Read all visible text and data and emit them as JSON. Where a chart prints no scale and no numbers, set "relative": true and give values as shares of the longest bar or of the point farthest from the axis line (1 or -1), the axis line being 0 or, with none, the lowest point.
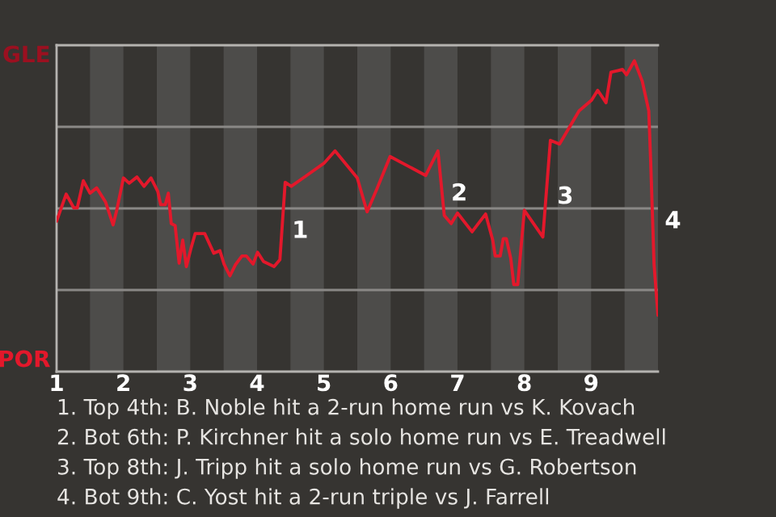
{
  "chart_data": {
    "type": "line",
    "relative": true,
    "x": [
      1.0,
      1.143,
      1.257,
      1.31,
      1.4,
      1.5,
      1.6,
      1.734,
      1.846,
      1.9,
      2.0,
      2.087,
      2.203,
      2.308,
      2.413,
      2.514,
      2.558,
      2.626,
      2.672,
      2.716,
      2.774,
      2.834,
      2.888,
      2.942,
      3.013,
      3.074,
      3.217,
      3.352,
      3.444,
      3.506,
      3.594,
      3.674,
      3.774,
      3.84,
      3.94,
      4.008,
      4.097,
      4.255,
      4.342,
      4.421,
      4.512,
      4.742,
      5.0,
      5.167,
      5.5,
      5.647,
      5.794,
      5.991,
      6.524,
      6.707,
      6.802,
      6.905,
      7.0,
      7.218,
      7.421,
      7.527,
      7.564,
      7.639,
      7.685,
      7.73,
      7.797,
      7.842,
      7.901,
      8.0,
      8.277,
      8.39,
      8.527,
      8.819,
      9.006,
      9.098,
      9.222,
      9.296,
      9.469,
      9.529,
      9.647,
      9.765,
      9.862,
      9.891,
      9.941,
      10.0
    ],
    "series": [
      {
        "color": "#e3182b",
        "values": [
          0.484,
          0.571,
          0.527,
          0.527,
          0.614,
          0.574,
          0.591,
          0.545,
          0.472,
          0.519,
          0.623,
          0.606,
          0.626,
          0.596,
          0.623,
          0.58,
          0.537,
          0.537,
          0.574,
          0.476,
          0.47,
          0.349,
          0.423,
          0.338,
          0.398,
          0.444,
          0.444,
          0.381,
          0.389,
          0.346,
          0.308,
          0.343,
          0.372,
          0.372,
          0.346,
          0.384,
          0.354,
          0.338,
          0.36,
          0.609,
          0.596,
          0.631,
          0.67,
          0.71,
          0.623,
          0.514,
          0.588,
          0.692,
          0.631,
          0.71,
          0.502,
          0.476,
          0.51,
          0.45,
          0.507,
          0.423,
          0.372,
          0.372,
          0.428,
          0.428,
          0.364,
          0.28,
          0.28,
          0.519,
          0.433,
          0.744,
          0.732,
          0.839,
          0.873,
          0.905,
          0.865,
          0.963,
          0.972,
          0.955,
          1,
          0.934,
          0.839,
          0.675,
          0.346,
          0.181
        ]
      }
    ],
    "xlim": [
      1,
      10
    ],
    "xticks": [
      1,
      2,
      3,
      4,
      5,
      6,
      7,
      8,
      9
    ],
    "grid": "y",
    "bands": [
      {
        "axis": "x",
        "from": 1.5,
        "to": 2,
        "color": "#4d4c4a"
      },
      {
        "axis": "x",
        "from": 2.5,
        "to": 3,
        "color": "#4d4c4a"
      },
      {
        "axis": "x",
        "from": 3.5,
        "to": 4,
        "color": "#4d4c4a"
      },
      {
        "axis": "x",
        "from": 4.5,
        "to": 5,
        "color": "#4d4c4a"
      },
      {
        "axis": "x",
        "from": 5.5,
        "to": 6,
        "color": "#4d4c4a"
      },
      {
        "axis": "x",
        "from": 6.5,
        "to": 7,
        "color": "#4d4c4a"
      },
      {
        "axis": "x",
        "from": 7.5,
        "to": 8,
        "color": "#4d4c4a"
      },
      {
        "axis": "x",
        "from": 8.5,
        "to": 9,
        "color": "#4d4c4a"
      },
      {
        "axis": "x",
        "from": 9.5,
        "to": 10,
        "color": "#4d4c4a"
      }
    ],
    "annotations": [
      "GLE",
      "POR",
      {
        "text": "1",
        "x": 4.421,
        "y": 0.451
      },
      {
        "text": "2",
        "x": 6.802,
        "y": 0.571
      },
      {
        "text": "3",
        "x": 8.39,
        "y": 0.561
      },
      {
        "text": "4",
        "x": 10.0,
        "y": 0.482
      },
      "1. Top 4th: B. Noble hit a 2-run home run vs K. Kovach",
      "2. Bot 6th: P. Kirchner hit a solo home run vs E. Treadwell",
      "3. Top 8th: J. Tripp hit a solo home run vs G. Robertson",
      "4. Bot 9th: C. Yost hit a 2-run triple vs J. Farrell"
    ]
  }
}
